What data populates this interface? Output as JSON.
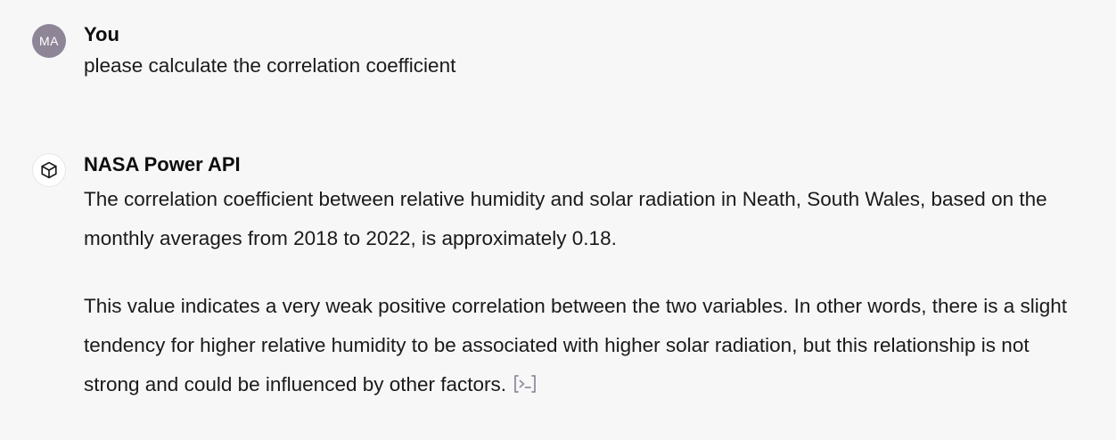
{
  "conversation": {
    "user_message": {
      "avatar_initials": "MA",
      "author": "You",
      "text": "please calculate the correlation coefficient"
    },
    "assistant_message": {
      "author": "NASA Power API",
      "avatar_icon": "cube-icon",
      "paragraph_1": "The correlation coefficient between relative humidity and solar radiation in Neath, South Wales, based on the monthly averages from 2018 to 2022, is approximately 0.18.",
      "paragraph_2": "This value indicates a very weak positive correlation between the two variables. In other words, there is a slight tendency for higher relative humidity to be associated with higher solar radiation, but this relationship is not strong and could be influenced by other factors.",
      "code_link_icon": "code-terminal-icon"
    }
  },
  "colors": {
    "background": "#f7f7f8",
    "avatar_bg": "#8e8696",
    "text": "#1a1a1a",
    "icon": "#8e8ea0"
  }
}
